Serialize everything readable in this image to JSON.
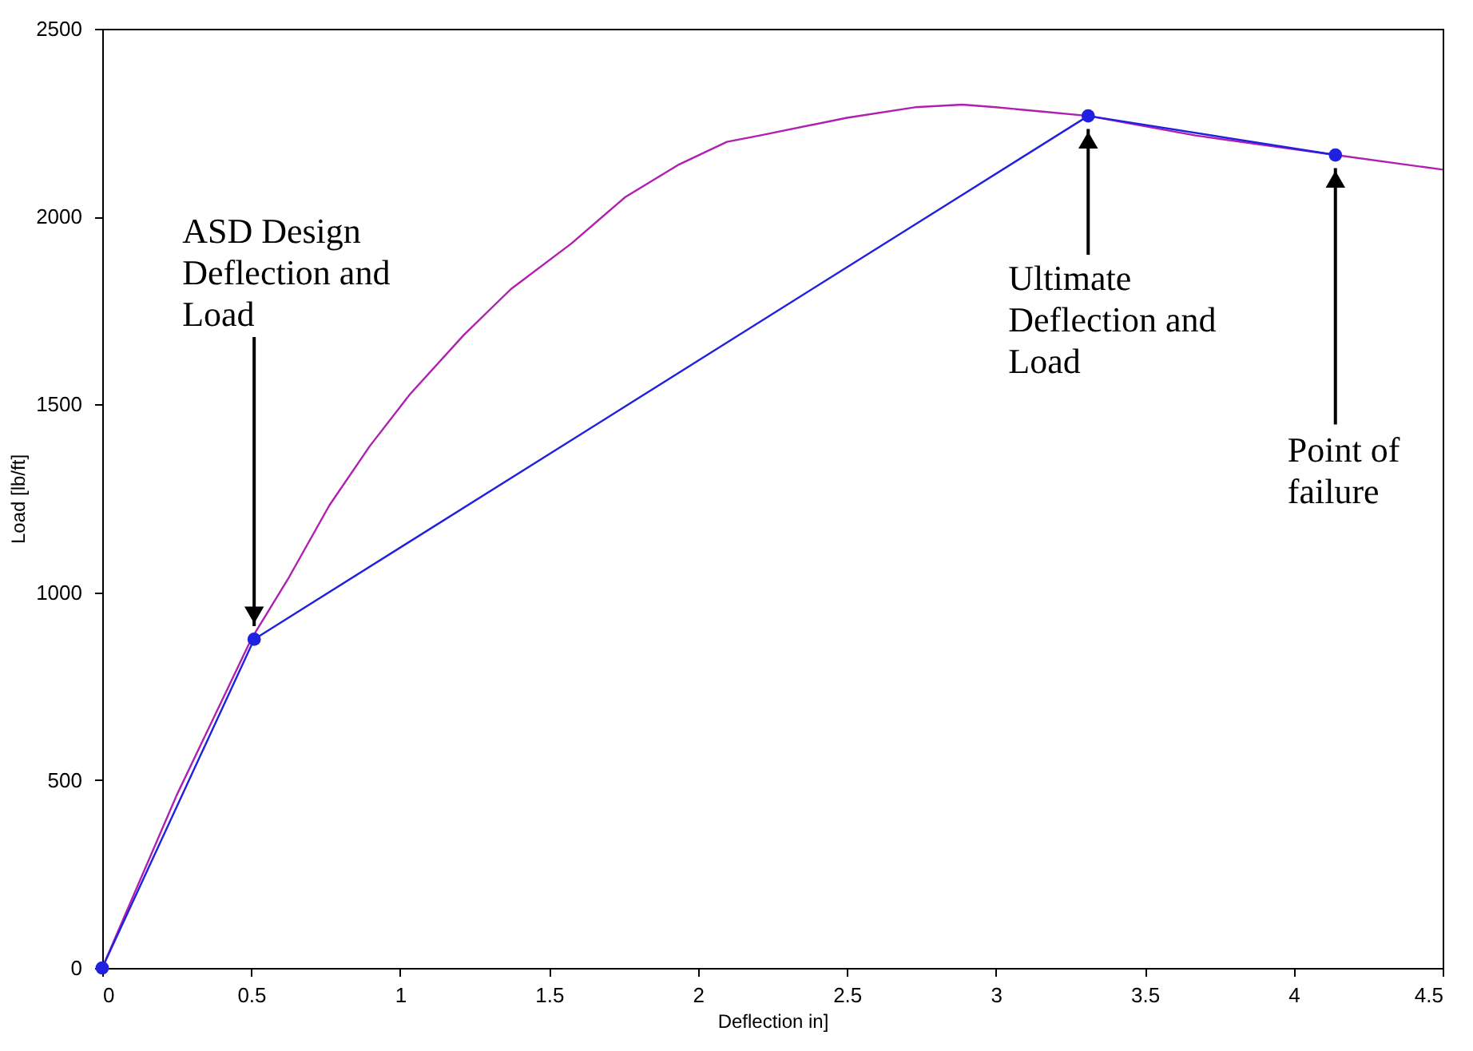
{
  "chart_data": {
    "type": "line",
    "xlabel": "Deflection in]",
    "ylabel": "Load [lb/ft]",
    "xlim": [
      0,
      4.5
    ],
    "xticks": [
      0,
      0.5,
      1,
      1.5,
      2,
      2.5,
      3,
      3.5,
      4,
      4.5
    ],
    "ylim": [
      0,
      2500
    ],
    "yticks": [
      0,
      500,
      1000,
      1500,
      2000,
      2500
    ],
    "grid": false,
    "series": [
      {
        "color": "#b020b0",
        "marker": "none",
        "x": [
          0,
          0.25,
          0.5,
          0.627,
          0.763,
          0.898,
          1.034,
          1.214,
          1.372,
          1.576,
          1.756,
          1.937,
          2.097,
          2.208,
          2.5,
          2.728,
          2.887,
          3.0,
          3.15,
          3.31,
          3.67,
          4.14,
          4.5
        ],
        "values": [
          0,
          460,
          875,
          1040,
          1232,
          1389,
          1528,
          1685,
          1807,
          1929,
          2052,
          2139,
          2199,
          2216,
          2263,
          2291,
          2298,
          2291,
          2280,
          2268,
          2216,
          2164,
          2125
        ]
      },
      {
        "color": "#2020e0",
        "marker": "circle",
        "x": [
          0,
          0.51,
          3.31,
          4.14
        ],
        "values": [
          0,
          875,
          2268,
          2164
        ]
      }
    ],
    "annotations": [
      {
        "text": "ASD Design\nDeflection and\nLoad",
        "x": 0.51,
        "y": 875
      },
      {
        "text": "Ultimate\nDeflection and\nLoad",
        "x": 3.31,
        "y": 2268
      },
      {
        "text": "Point of\nfailure",
        "x": 4.14,
        "y": 2164
      }
    ]
  }
}
